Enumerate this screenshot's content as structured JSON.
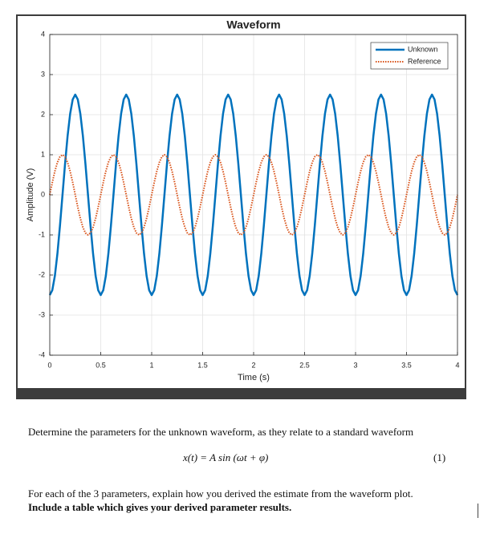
{
  "chart_data": {
    "type": "line",
    "title": "Waveform",
    "x_label": "Time (s)",
    "y_label": "Amplitude (V)",
    "x": [
      0,
      0.025,
      0.05,
      0.075,
      0.1,
      0.125,
      0.15,
      0.175,
      0.2,
      0.225,
      0.25,
      0.275,
      0.3,
      0.325,
      0.35,
      0.375,
      0.4,
      0.425,
      0.45,
      0.475,
      0.5,
      0.525,
      0.55,
      0.575,
      0.6,
      0.625,
      0.65,
      0.675,
      0.7,
      0.725,
      0.75,
      0.775,
      0.8,
      0.825,
      0.85,
      0.875,
      0.9,
      0.925,
      0.95,
      0.975,
      1,
      1.025,
      1.05,
      1.075,
      1.1,
      1.125,
      1.15,
      1.175,
      1.2,
      1.225,
      1.25,
      1.275,
      1.3,
      1.325,
      1.35,
      1.375,
      1.4,
      1.425,
      1.45,
      1.475,
      1.5,
      1.525,
      1.55,
      1.575,
      1.6,
      1.625,
      1.65,
      1.675,
      1.7,
      1.725,
      1.75,
      1.775,
      1.8,
      1.825,
      1.85,
      1.875,
      1.9,
      1.925,
      1.95,
      1.975,
      2,
      2.025,
      2.05,
      2.075,
      2.1,
      2.125,
      2.15,
      2.175,
      2.2,
      2.225,
      2.25,
      2.275,
      2.3,
      2.325,
      2.35,
      2.375,
      2.4,
      2.425,
      2.45,
      2.475,
      2.5,
      2.525,
      2.55,
      2.575,
      2.6,
      2.625,
      2.65,
      2.675,
      2.7,
      2.725,
      2.75,
      2.775,
      2.8,
      2.825,
      2.85,
      2.875,
      2.9,
      2.925,
      2.95,
      2.975,
      3,
      3.025,
      3.05,
      3.075,
      3.1,
      3.125,
      3.15,
      3.175,
      3.2,
      3.225,
      3.25,
      3.275,
      3.3,
      3.325,
      3.35,
      3.375,
      3.4,
      3.425,
      3.45,
      3.475,
      3.5,
      3.525,
      3.55,
      3.575,
      3.6,
      3.625,
      3.65,
      3.675,
      3.7,
      3.725,
      3.75,
      3.775,
      3.8,
      3.825,
      3.85,
      3.875,
      3.9,
      3.925,
      3.95,
      3.975,
      4
    ],
    "series": [
      {
        "name": "Unknown",
        "color": "#0072bd",
        "style": "solid",
        "values": [
          -2.5,
          -2.378,
          -2.023,
          -1.469,
          -0.773,
          0,
          0.773,
          1.469,
          2.023,
          2.378,
          2.5,
          2.378,
          2.023,
          1.469,
          0.773,
          0,
          -0.773,
          -1.469,
          -2.023,
          -2.378,
          -2.5,
          -2.378,
          -2.023,
          -1.469,
          -0.773,
          0,
          0.773,
          1.469,
          2.023,
          2.378,
          2.5,
          2.378,
          2.023,
          1.469,
          0.773,
          0,
          -0.773,
          -1.469,
          -2.023,
          -2.378,
          -2.5,
          -2.378,
          -2.023,
          -1.469,
          -0.773,
          0,
          0.773,
          1.469,
          2.023,
          2.378,
          2.5,
          2.378,
          2.023,
          1.469,
          0.773,
          0,
          -0.773,
          -1.469,
          -2.023,
          -2.378,
          -2.5,
          -2.378,
          -2.023,
          -1.469,
          -0.773,
          0,
          0.773,
          1.469,
          2.023,
          2.378,
          2.5,
          2.378,
          2.023,
          1.469,
          0.773,
          0,
          -0.773,
          -1.469,
          -2.023,
          -2.378,
          -2.5,
          -2.378,
          -2.023,
          -1.469,
          -0.773,
          0,
          0.773,
          1.469,
          2.023,
          2.378,
          2.5,
          2.378,
          2.023,
          1.469,
          0.773,
          0,
          -0.773,
          -1.469,
          -2.023,
          -2.378,
          -2.5,
          -2.378,
          -2.023,
          -1.469,
          -0.773,
          0,
          0.773,
          1.469,
          2.023,
          2.378,
          2.5,
          2.378,
          2.023,
          1.469,
          0.773,
          0,
          -0.773,
          -1.469,
          -2.023,
          -2.378,
          -2.5,
          -2.378,
          -2.023,
          -1.469,
          -0.773,
          0,
          0.773,
          1.469,
          2.023,
          2.378,
          2.5,
          2.378,
          2.023,
          1.469,
          0.773,
          0,
          -0.773,
          -1.469,
          -2.023,
          -2.378,
          -2.5,
          -2.378,
          -2.023,
          -1.469,
          -0.773,
          0,
          0.773,
          1.469,
          2.023,
          2.378,
          2.5,
          2.378,
          2.023,
          1.469,
          0.773,
          0,
          -0.773,
          -1.469,
          -2.023,
          -2.378,
          -2.5
        ]
      },
      {
        "name": "Reference",
        "color": "#d95319",
        "style": "dotted",
        "values": [
          0,
          0.309,
          0.588,
          0.809,
          0.951,
          1,
          0.951,
          0.809,
          0.588,
          0.309,
          0,
          -0.309,
          -0.588,
          -0.809,
          -0.951,
          -1,
          -0.951,
          -0.809,
          -0.588,
          -0.309,
          0,
          0.309,
          0.588,
          0.809,
          0.951,
          1,
          0.951,
          0.809,
          0.588,
          0.309,
          0,
          -0.309,
          -0.588,
          -0.809,
          -0.951,
          -1,
          -0.951,
          -0.809,
          -0.588,
          -0.309,
          0,
          0.309,
          0.588,
          0.809,
          0.951,
          1,
          0.951,
          0.809,
          0.588,
          0.309,
          0,
          -0.309,
          -0.588,
          -0.809,
          -0.951,
          -1,
          -0.951,
          -0.809,
          -0.588,
          -0.309,
          0,
          0.309,
          0.588,
          0.809,
          0.951,
          1,
          0.951,
          0.809,
          0.588,
          0.309,
          0,
          -0.309,
          -0.588,
          -0.809,
          -0.951,
          -1,
          -0.951,
          -0.809,
          -0.588,
          -0.309,
          0,
          0.309,
          0.588,
          0.809,
          0.951,
          1,
          0.951,
          0.809,
          0.588,
          0.309,
          0,
          -0.309,
          -0.588,
          -0.809,
          -0.951,
          -1,
          -0.951,
          -0.809,
          -0.588,
          -0.309,
          0,
          0.309,
          0.588,
          0.809,
          0.951,
          1,
          0.951,
          0.809,
          0.588,
          0.309,
          0,
          -0.309,
          -0.588,
          -0.809,
          -0.951,
          -1,
          -0.951,
          -0.809,
          -0.588,
          -0.309,
          0,
          0.309,
          0.588,
          0.809,
          0.951,
          1,
          0.951,
          0.809,
          0.588,
          0.309,
          0,
          -0.309,
          -0.588,
          -0.809,
          -0.951,
          -1,
          -0.951,
          -0.809,
          -0.588,
          -0.309,
          0,
          0.309,
          0.588,
          0.809,
          0.951,
          1,
          0.951,
          0.809,
          0.588,
          0.309,
          0,
          -0.309,
          -0.588,
          -0.809,
          -0.951,
          -1,
          -0.951,
          -0.809,
          -0.588,
          -0.309,
          0
        ]
      }
    ],
    "xlim": [
      0,
      4
    ],
    "xticks": [
      0,
      0.5,
      1,
      1.5,
      2,
      2.5,
      3,
      3.5,
      4
    ],
    "ylim": [
      -4,
      4
    ],
    "yticks": [
      -4,
      -3,
      -2,
      -1,
      0,
      1,
      2,
      3,
      4
    ],
    "grid": true,
    "legend_position": "top-right"
  },
  "document": {
    "prompt": "Determine the parameters for the unknown waveform, as they relate to a standard waveform",
    "equation": "x(t)  =  A sin (ωt + φ)",
    "equation_number": "(1)",
    "instruction": "For each of the 3 parameters, explain how you derived the estimate from the waveform plot.",
    "instruction_bold": "Include a table which gives your derived parameter results."
  }
}
